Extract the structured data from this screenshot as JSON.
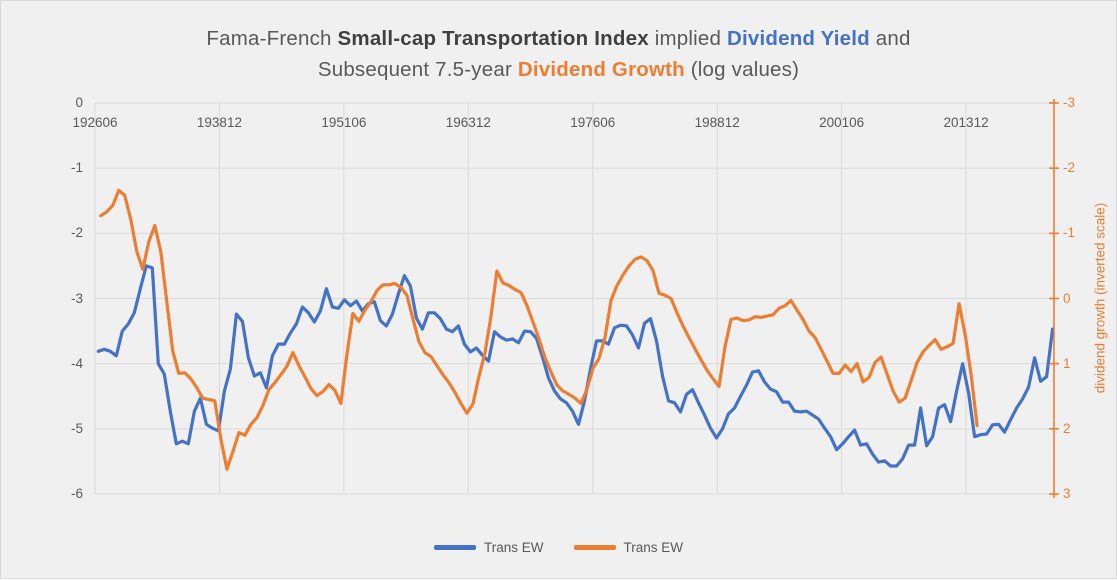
{
  "title": {
    "lines": [
      {
        "segments": [
          {
            "text": "Fama-French ",
            "bold": false,
            "color": "#595959"
          },
          {
            "text": "Small-cap Transportation Index",
            "bold": true,
            "color": "#404040"
          },
          {
            "text": " implied ",
            "bold": false,
            "color": "#595959"
          },
          {
            "text": "Dividend Yield",
            "bold": true,
            "color": "#4472c4"
          },
          {
            "text": " and",
            "bold": false,
            "color": "#595959"
          }
        ]
      },
      {
        "segments": [
          {
            "text": "Subsequent 7.5-year ",
            "bold": false,
            "color": "#595959"
          },
          {
            "text": "Dividend Growth",
            "bold": true,
            "color": "#ed7d31"
          },
          {
            "text": " (log values)",
            "bold": false,
            "color": "#595959"
          }
        ]
      }
    ]
  },
  "legend": {
    "items": [
      {
        "label": "Trans EW",
        "color": "#4472c4"
      },
      {
        "label": "Trans EW",
        "color": "#ed7d31"
      }
    ]
  },
  "right_axis_title": "dividend growth (inverted scale)",
  "colors": {
    "background": "#f0f0f1",
    "grid": "#dadada",
    "text": "#595959",
    "blue": "#4472c4",
    "orange": "#ed7d31"
  },
  "chart_data": {
    "type": "line",
    "title": "Fama-French Small-cap Transportation Index implied Dividend Yield and Subsequent 7.5-year Dividend Growth (log values)",
    "x_axis": {
      "tick_labels": [
        "192606",
        "193812",
        "195106",
        "196312",
        "197606",
        "198812",
        "200106",
        "201312"
      ],
      "tick_months": [
        0,
        150,
        300,
        450,
        600,
        750,
        900,
        1050
      ],
      "total_months": 1156,
      "note": "months since 1926-06; ticks every 12.5 years"
    },
    "y_left": {
      "ticks": [
        0,
        -1,
        -2,
        -3,
        -4,
        -5,
        -6
      ],
      "min": -6,
      "max": 0
    },
    "y_right": {
      "ticks": [
        -3,
        -2,
        -1,
        0,
        1,
        2,
        3
      ],
      "min": -3,
      "max": 3,
      "inverted": true,
      "color": "#ed7d31"
    },
    "grid": true,
    "legend_position": "bottom",
    "series": [
      {
        "name": "Trans EW",
        "role": "dividend-yield",
        "axis": "left",
        "color": "#4472c4",
        "start_month": 4,
        "month_step": 7.235,
        "values": [
          -3.81,
          -3.78,
          -3.81,
          -3.88,
          -3.5,
          -3.39,
          -3.22,
          -2.85,
          -2.5,
          -2.53,
          -4.0,
          -4.16,
          -4.73,
          -5.23,
          -5.19,
          -5.23,
          -4.73,
          -4.53,
          -4.93,
          -4.99,
          -5.03,
          -4.42,
          -4.08,
          -3.24,
          -3.35,
          -3.91,
          -4.19,
          -4.14,
          -4.37,
          -3.88,
          -3.7,
          -3.7,
          -3.53,
          -3.39,
          -3.13,
          -3.22,
          -3.36,
          -3.19,
          -2.85,
          -3.13,
          -3.15,
          -3.02,
          -3.11,
          -3.04,
          -3.19,
          -3.08,
          -3.05,
          -3.34,
          -3.42,
          -3.24,
          -2.93,
          -2.65,
          -2.81,
          -3.3,
          -3.47,
          -3.22,
          -3.22,
          -3.31,
          -3.47,
          -3.51,
          -3.42,
          -3.7,
          -3.82,
          -3.76,
          -3.87,
          -3.96,
          -3.51,
          -3.59,
          -3.64,
          -3.62,
          -3.68,
          -3.5,
          -3.51,
          -3.61,
          -3.9,
          -4.22,
          -4.42,
          -4.54,
          -4.6,
          -4.73,
          -4.93,
          -4.57,
          -4.08,
          -3.65,
          -3.65,
          -3.7,
          -3.45,
          -3.41,
          -3.42,
          -3.56,
          -3.76,
          -3.38,
          -3.31,
          -3.65,
          -4.19,
          -4.57,
          -4.6,
          -4.74,
          -4.47,
          -4.4,
          -4.6,
          -4.79,
          -4.99,
          -5.14,
          -5.0,
          -4.77,
          -4.68,
          -4.5,
          -4.33,
          -4.13,
          -4.11,
          -4.28,
          -4.39,
          -4.43,
          -4.59,
          -4.59,
          -4.73,
          -4.74,
          -4.73,
          -4.79,
          -4.85,
          -4.99,
          -5.12,
          -5.32,
          -5.23,
          -5.12,
          -5.02,
          -5.25,
          -5.23,
          -5.39,
          -5.51,
          -5.49,
          -5.57,
          -5.57,
          -5.46,
          -5.25,
          -5.25,
          -4.68,
          -5.26,
          -5.12,
          -4.68,
          -4.63,
          -4.89,
          -4.42,
          -4.0,
          -4.45,
          -5.12,
          -5.09,
          -5.08,
          -4.94,
          -4.93,
          -5.05,
          -4.86,
          -4.68,
          -4.54,
          -4.36,
          -3.91,
          -4.27,
          -4.2,
          -3.47
        ]
      },
      {
        "name": "Trans EW",
        "role": "dividend-growth",
        "axis": "right",
        "color": "#ed7d31",
        "start_month": 7,
        "month_step": 7.235,
        "values": [
          -1.27,
          -1.33,
          -1.43,
          -1.66,
          -1.58,
          -1.21,
          -0.72,
          -0.45,
          -0.87,
          -1.12,
          -0.72,
          0.05,
          0.81,
          1.15,
          1.14,
          1.23,
          1.37,
          1.53,
          1.55,
          1.57,
          2.15,
          2.62,
          2.35,
          2.06,
          2.1,
          1.93,
          1.83,
          1.64,
          1.4,
          1.29,
          1.17,
          1.04,
          0.83,
          1.03,
          1.2,
          1.38,
          1.49,
          1.43,
          1.32,
          1.41,
          1.61,
          0.86,
          0.23,
          0.35,
          0.18,
          0.05,
          -0.12,
          -0.21,
          -0.21,
          -0.23,
          -0.17,
          -0.05,
          0.31,
          0.66,
          0.83,
          0.89,
          1.03,
          1.17,
          1.29,
          1.44,
          1.61,
          1.76,
          1.62,
          1.2,
          0.84,
          0.28,
          -0.42,
          -0.24,
          -0.2,
          -0.14,
          -0.09,
          0.11,
          0.36,
          0.62,
          0.91,
          1.13,
          1.33,
          1.42,
          1.47,
          1.53,
          1.61,
          1.39,
          1.07,
          0.92,
          0.6,
          0.03,
          -0.2,
          -0.36,
          -0.5,
          -0.6,
          -0.64,
          -0.58,
          -0.43,
          -0.08,
          -0.05,
          0.0,
          0.22,
          0.42,
          0.6,
          0.77,
          0.94,
          1.1,
          1.23,
          1.35,
          0.74,
          0.32,
          0.3,
          0.34,
          0.33,
          0.28,
          0.29,
          0.27,
          0.25,
          0.15,
          0.11,
          0.03,
          0.18,
          0.32,
          0.5,
          0.6,
          0.78,
          0.96,
          1.15,
          1.15,
          1.02,
          1.12,
          1.0,
          1.28,
          1.21,
          0.98,
          0.9,
          1.16,
          1.42,
          1.59,
          1.53,
          1.26,
          0.98,
          0.82,
          0.72,
          0.63,
          0.78,
          0.74,
          0.69,
          0.08,
          0.55,
          1.17,
          1.95
        ]
      }
    ]
  }
}
